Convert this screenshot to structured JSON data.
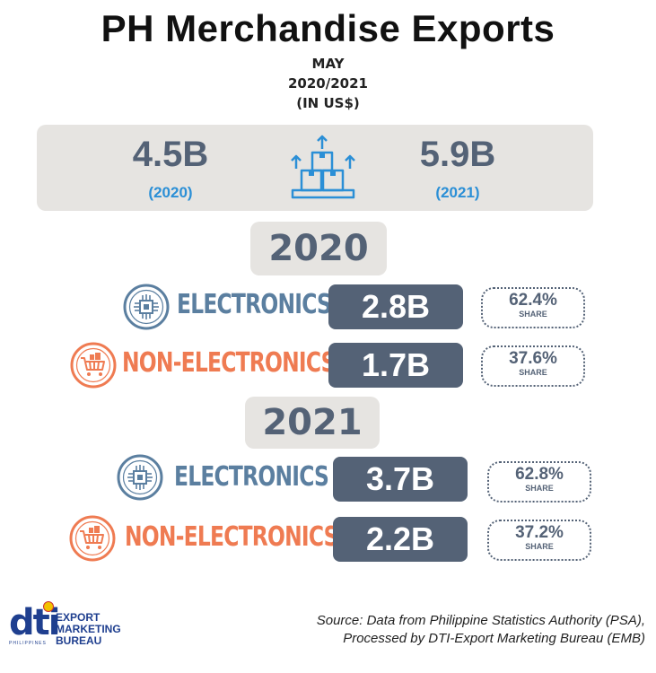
{
  "header": {
    "title": "PH Merchandise Exports",
    "month": "MAY",
    "years": "2020/2021",
    "unit": "(IN US$)"
  },
  "summary": {
    "value_2020": "4.5B",
    "label_2020": "(2020)",
    "value_2021": "5.9B",
    "label_2021": "(2021)",
    "icon": "boxes-upload-icon"
  },
  "sections": [
    {
      "year": "2020",
      "rows": [
        {
          "category": "ELECTRONICS",
          "value": "2.8B",
          "share": "62.4%",
          "share_label": "SHARE",
          "icon": "chip-icon"
        },
        {
          "category": "NON-ELECTRONICS",
          "value": "1.7B",
          "share": "37.6%",
          "share_label": "SHARE",
          "icon": "cart-icon"
        }
      ]
    },
    {
      "year": "2021",
      "rows": [
        {
          "category": "ELECTRONICS",
          "value": "3.7B",
          "share": "62.8%",
          "share_label": "SHARE",
          "icon": "chip-icon"
        },
        {
          "category": "NON-ELECTRONICS",
          "value": "2.2B",
          "share": "37.2%",
          "share_label": "SHARE",
          "icon": "cart-icon"
        }
      ]
    }
  ],
  "footer": {
    "logo_text": "dti",
    "logo_sub": "PHILIPPINES",
    "bureau_line1": "EXPORT",
    "bureau_line2": "MARKETING",
    "bureau_line3": "BUREAU",
    "source_line1": "Source: Data from Philippine Statistics Authority (PSA),",
    "source_line2": "Processed by DTI-Export Marketing Bureau (EMB)"
  },
  "colors": {
    "slate": "#546276",
    "electronics": "#5b7fa0",
    "non_electronics": "#ef7b52",
    "year_blue": "#2b8fd6",
    "panel": "#e6e4e1"
  }
}
